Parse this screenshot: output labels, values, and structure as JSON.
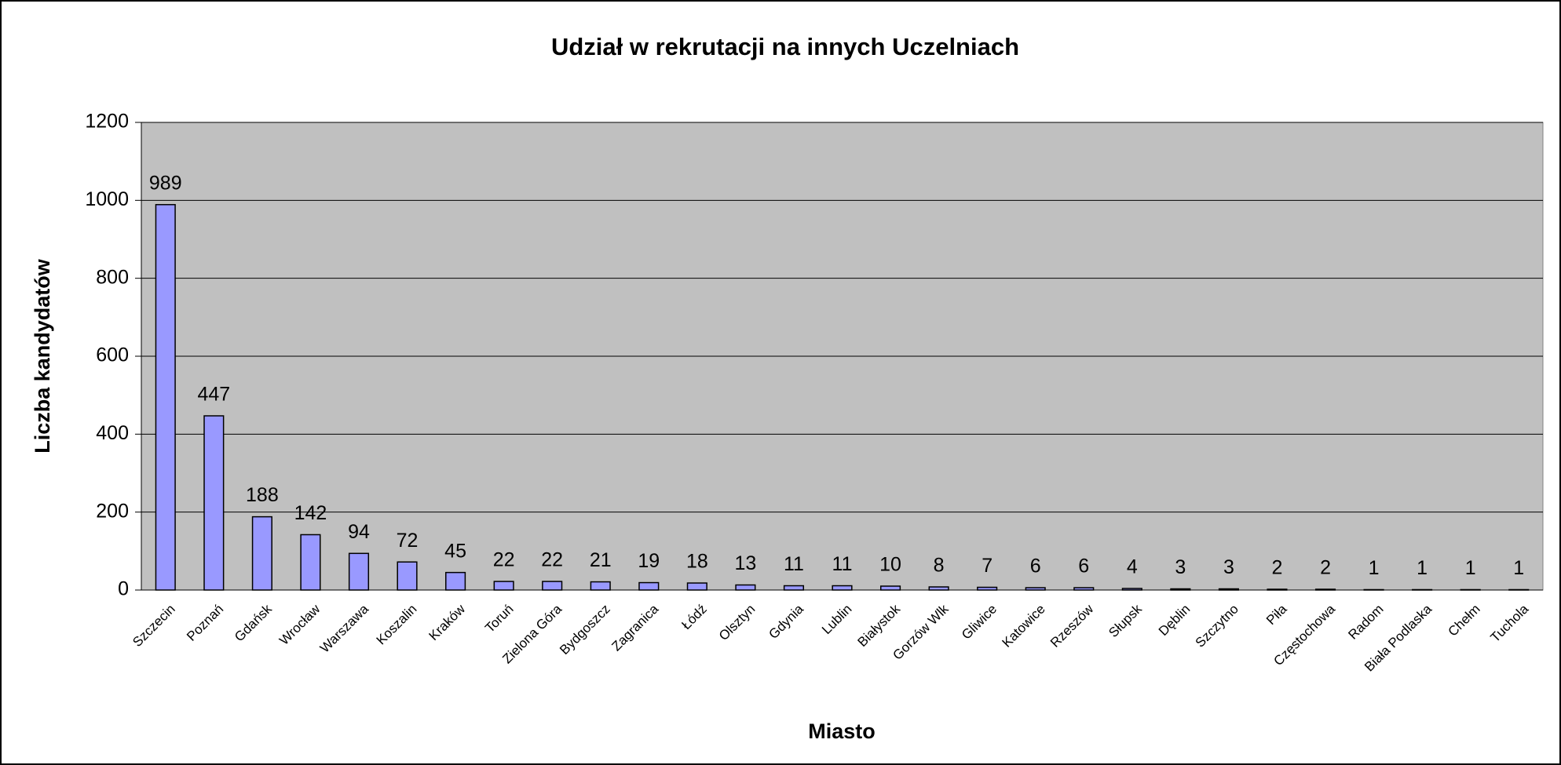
{
  "chart_data": {
    "type": "bar",
    "title": "Udział w rekrutacji na innych Uczelniach",
    "x_label": "Miasto",
    "y_label": "Liczba kandydatów",
    "categories": [
      "Szczecin",
      "Poznań",
      "Gdańsk",
      "Wrocław",
      "Warszawa",
      "Koszalin",
      "Kraków",
      "Toruń",
      "Zielona Góra",
      "Bydgoszcz",
      "Zagranica",
      "Łódź",
      "Olsztyn",
      "Gdynia",
      "Lublin",
      "Białystok",
      "Gorzów Wlk",
      "Gliwice",
      "Katowice",
      "Rzeszów",
      "Słupsk",
      "Dęblin",
      "Szczytno",
      "Piła",
      "Częstochowa",
      "Radom",
      "Biała Podlaska",
      "Chełm",
      "Tuchola"
    ],
    "values": [
      989,
      447,
      188,
      142,
      94,
      72,
      45,
      22,
      22,
      21,
      19,
      18,
      13,
      11,
      11,
      10,
      8,
      7,
      6,
      6,
      4,
      3,
      3,
      2,
      2,
      1,
      1,
      1,
      1
    ],
    "color": "#9999ff",
    "ylim": [
      0,
      1200
    ],
    "yticks": [
      0,
      200,
      400,
      600,
      800,
      1000,
      1200
    ],
    "grid": true
  }
}
